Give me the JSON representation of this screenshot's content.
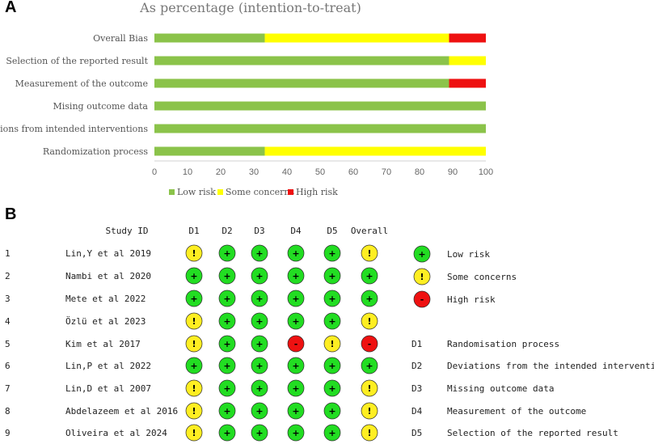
{
  "panel_a_letter": "A",
  "panel_b_letter": "B",
  "chart_data": {
    "type": "bar",
    "title": "As percentage (intention-to-treat)",
    "categories": [
      "Overall Bias",
      "Selection of the reported result",
      "Measurement of the outcome",
      "Mising outcome data",
      "Deviations from intended interventions",
      "Randomization process"
    ],
    "series": [
      {
        "name": "Low risk",
        "color": "#8bc34a",
        "values": [
          33.3,
          88.9,
          88.9,
          100,
          100,
          33.3
        ]
      },
      {
        "name": "Some concerns",
        "color": "#ffff00",
        "values": [
          55.6,
          11.1,
          0,
          0,
          0,
          66.7
        ]
      },
      {
        "name": "High risk",
        "color": "#ee1111",
        "values": [
          11.1,
          0,
          11.1,
          0,
          0,
          0
        ]
      }
    ],
    "xlim": [
      0,
      100
    ],
    "xticks": [
      0,
      10,
      20,
      30,
      40,
      50,
      60,
      70,
      80,
      90,
      100
    ],
    "stacked": true,
    "orientation": "horizontal",
    "legend_position": "bottom"
  },
  "table": {
    "header_study": "Study ID",
    "columns": [
      "D1",
      "D2",
      "D3",
      "D4",
      "D5",
      "Overall"
    ],
    "rows": [
      {
        "num": "1",
        "study": "Lin,Y et al 2019",
        "ratings": [
          "some",
          "low",
          "low",
          "low",
          "low",
          "some"
        ]
      },
      {
        "num": "2",
        "study": "Nambi et al 2020",
        "ratings": [
          "low",
          "low",
          "low",
          "low",
          "low",
          "low"
        ]
      },
      {
        "num": "3",
        "study": "Mete et al 2022",
        "ratings": [
          "low",
          "low",
          "low",
          "low",
          "low",
          "low"
        ]
      },
      {
        "num": "4",
        "study": "Özlü et al 2023",
        "ratings": [
          "some",
          "low",
          "low",
          "low",
          "low",
          "some"
        ]
      },
      {
        "num": "5",
        "study": "Kim et al 2017",
        "ratings": [
          "some",
          "low",
          "low",
          "high",
          "some",
          "high"
        ]
      },
      {
        "num": "6",
        "study": "Lin,P et al 2022",
        "ratings": [
          "low",
          "low",
          "low",
          "low",
          "low",
          "low"
        ]
      },
      {
        "num": "7",
        "study": "Lin,D  et al 2007",
        "ratings": [
          "some",
          "low",
          "low",
          "low",
          "low",
          "some"
        ]
      },
      {
        "num": "8",
        "study": "Abdelazeem et al 2016",
        "ratings": [
          "some",
          "low",
          "low",
          "low",
          "low",
          "some"
        ]
      },
      {
        "num": "9",
        "study": "Oliveira et al 2024",
        "ratings": [
          "some",
          "low",
          "low",
          "low",
          "low",
          "some"
        ]
      }
    ],
    "symbols": {
      "low": "+",
      "some": "!",
      "high": "-"
    },
    "colors": {
      "low": "#22dd22",
      "some": "#ffee22",
      "high": "#ee1111"
    },
    "legend": [
      {
        "key": "low",
        "label": "Low risk"
      },
      {
        "key": "some",
        "label": "Some concerns"
      },
      {
        "key": "high",
        "label": "High risk"
      }
    ],
    "domains": [
      {
        "code": "D1",
        "label": "Randomisation process"
      },
      {
        "code": "D2",
        "label": "Deviations from the intended interventions"
      },
      {
        "code": "D3",
        "label": "Missing outcome data"
      },
      {
        "code": "D4",
        "label": "Measurement of the outcome"
      },
      {
        "code": "D5",
        "label": "Selection of the reported result"
      }
    ]
  }
}
